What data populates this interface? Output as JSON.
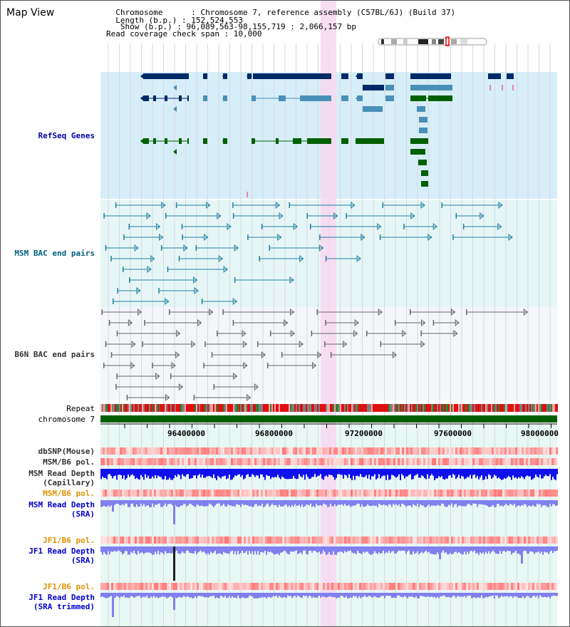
{
  "header": {
    "title": "Map View",
    "info_lines": [
      "  Chromosome      : Chromosome 7, reference assembly (C57BL/6J) (Build 37)",
      "  Length (b.p.) : 152,524,553",
      "   Show (b.p.) : 96,089,563-98,155,719 : 2,066,157 bp",
      "Read coverage check span : 10,000"
    ]
  },
  "tracks": {
    "refseq": "RefSeq Genes",
    "msm_bac": "MSM BAC end pairs",
    "b6n_bac": "B6N BAC end pairs",
    "repeat": "Repeat",
    "chromosome": "chromosome 7",
    "dbsnp": "dbSNP(Mouse)",
    "msm_b6_pol_1": "MSM/B6 pol.",
    "msm_depth_cap_1": "MSM Read Depth",
    "msm_depth_cap_2": "(Capillary)",
    "msm_b6_pol_2": "MSM/B6 pol.",
    "msm_depth_sra_1": "MSM Read Depth",
    "msm_depth_sra_2": "(SRA)",
    "jf1_b6_pol_1": "JF1/B6 pol.",
    "jf1_depth_sra_1": "JF1 Read Depth",
    "jf1_depth_sra_2": "(SRA)",
    "jf1_b6_pol_2": "JF1/B6 pol.",
    "jf1_depth_trim_1": "JF1 Read Depth",
    "jf1_depth_trim_2": "(SRA trimmed)"
  },
  "axis": {
    "ticks": [
      "96400000",
      "96800000",
      "97200000",
      "97600000",
      "98000000"
    ]
  },
  "colors": {
    "refseq_bg": "#d6eef8",
    "bac_bg": "#e6f6f6",
    "gene_navy": "#002a66",
    "gene_steel": "#4a8fb8",
    "gene_green": "#006000",
    "highlight": "#f8d8f0",
    "depth_blue": "#1010ee",
    "depth_light": "#8080ee"
  }
}
